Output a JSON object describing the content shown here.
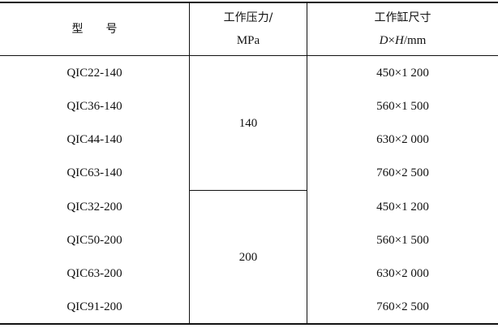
{
  "table": {
    "headers": {
      "model": "型　　号",
      "pressure_line1": "工作压力/",
      "pressure_line2": "MPa",
      "size_line1": "工作缸尺寸",
      "size_D": "D",
      "size_times": "×",
      "size_H": "H",
      "size_unit": "/mm"
    },
    "groups": [
      {
        "pressure": "140",
        "rows": [
          {
            "model": "QIC22-140",
            "size": "450×1 200"
          },
          {
            "model": "QIC36-140",
            "size": "560×1 500"
          },
          {
            "model": "QIC44-140",
            "size": "630×2 000"
          },
          {
            "model": "QIC63-140",
            "size": "760×2 500"
          }
        ]
      },
      {
        "pressure": "200",
        "rows": [
          {
            "model": "QIC32-200",
            "size": "450×1 200"
          },
          {
            "model": "QIC50-200",
            "size": "560×1 500"
          },
          {
            "model": "QIC63-200",
            "size": "630×2 000"
          },
          {
            "model": "QIC91-200",
            "size": "760×2 500"
          }
        ]
      }
    ]
  }
}
